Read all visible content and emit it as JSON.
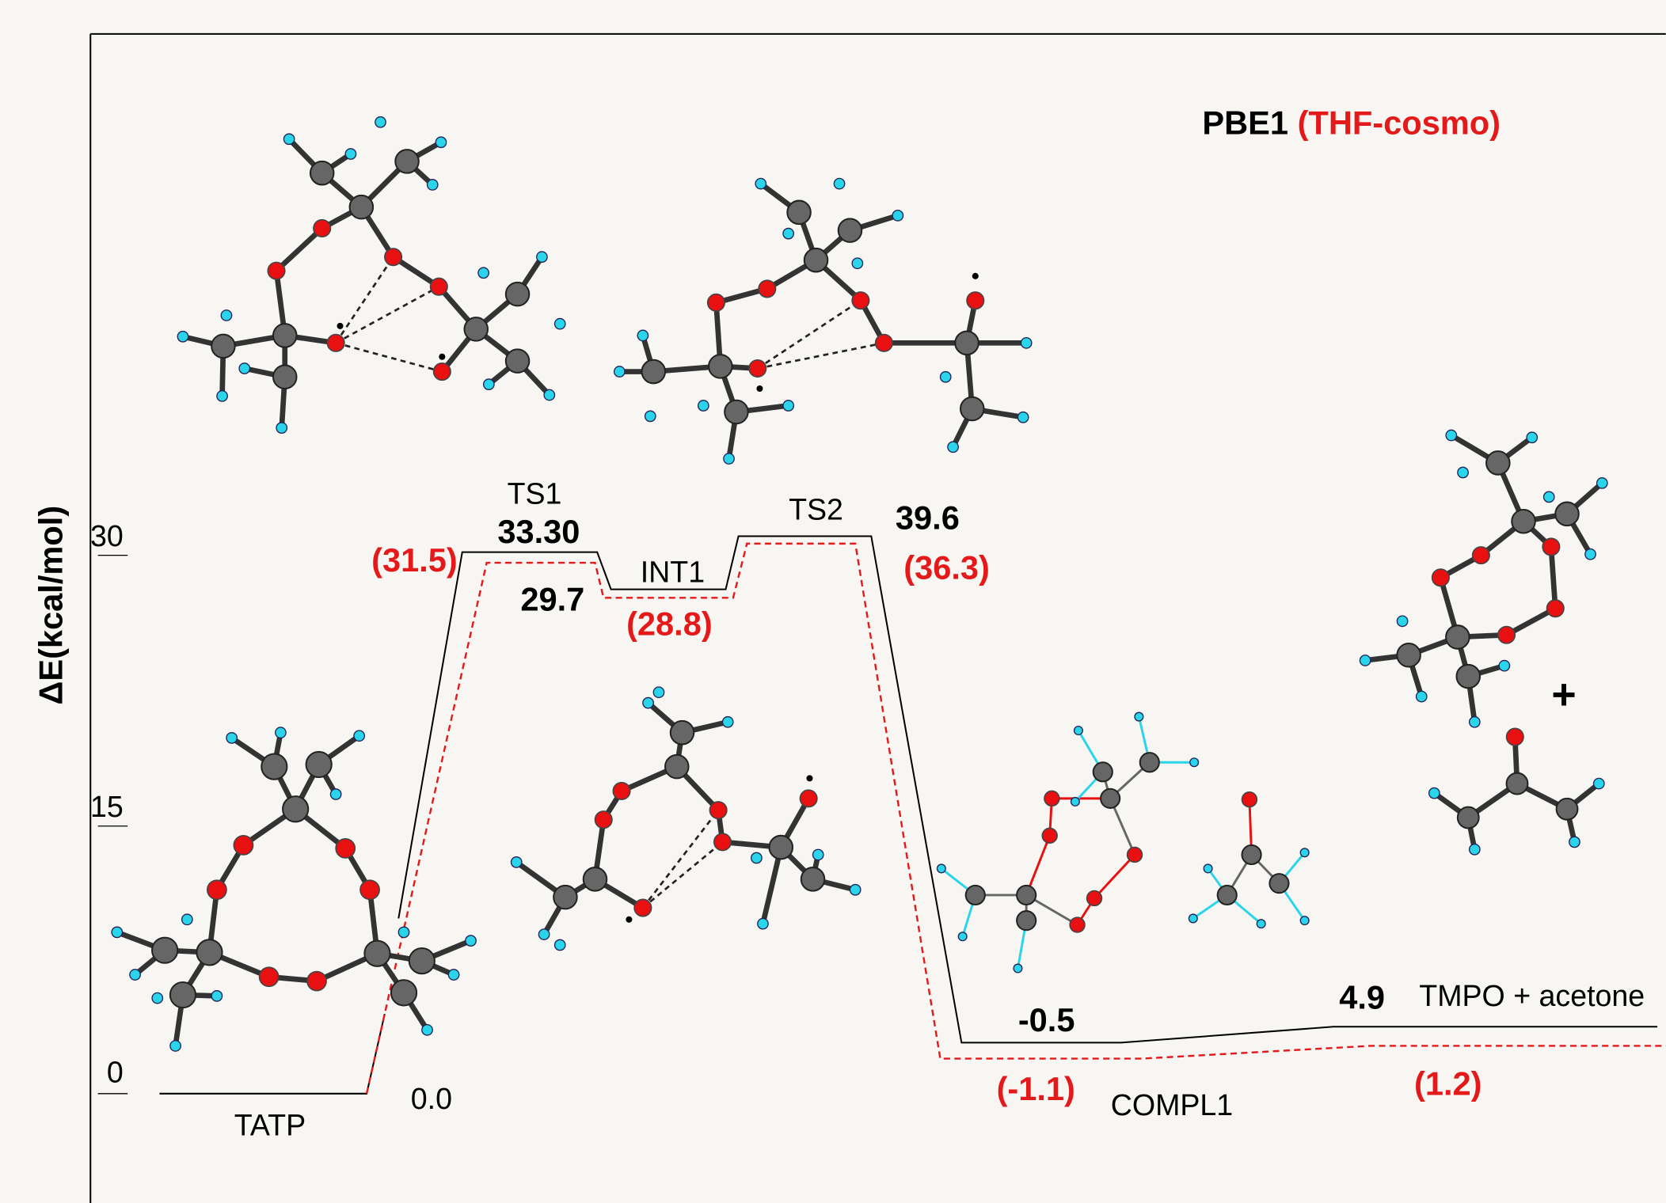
{
  "title": {
    "method": "PBE1",
    "solvent": "(THF-cosmo)"
  },
  "y_axis": {
    "label": "ΔE(kcal/mol)",
    "ticks": [
      "30",
      "15",
      "0"
    ]
  },
  "states": [
    {
      "name": "TATP",
      "energy": "0.0"
    },
    {
      "name": "TS1",
      "energy": "33.30",
      "solvent_energy": "(31.5)"
    },
    {
      "name": "INT1",
      "energy": "29.7",
      "solvent_energy": "(28.8)"
    },
    {
      "name": "TS2",
      "energy": "39.6",
      "solvent_energy": "(36.3)"
    },
    {
      "name": "COMPL1",
      "energy": "-0.5",
      "solvent_energy": "(-1.1)"
    },
    {
      "name": "TMPO + acetone",
      "energy": "4.9",
      "solvent_energy": "(1.2)"
    }
  ],
  "plus": "+"
}
